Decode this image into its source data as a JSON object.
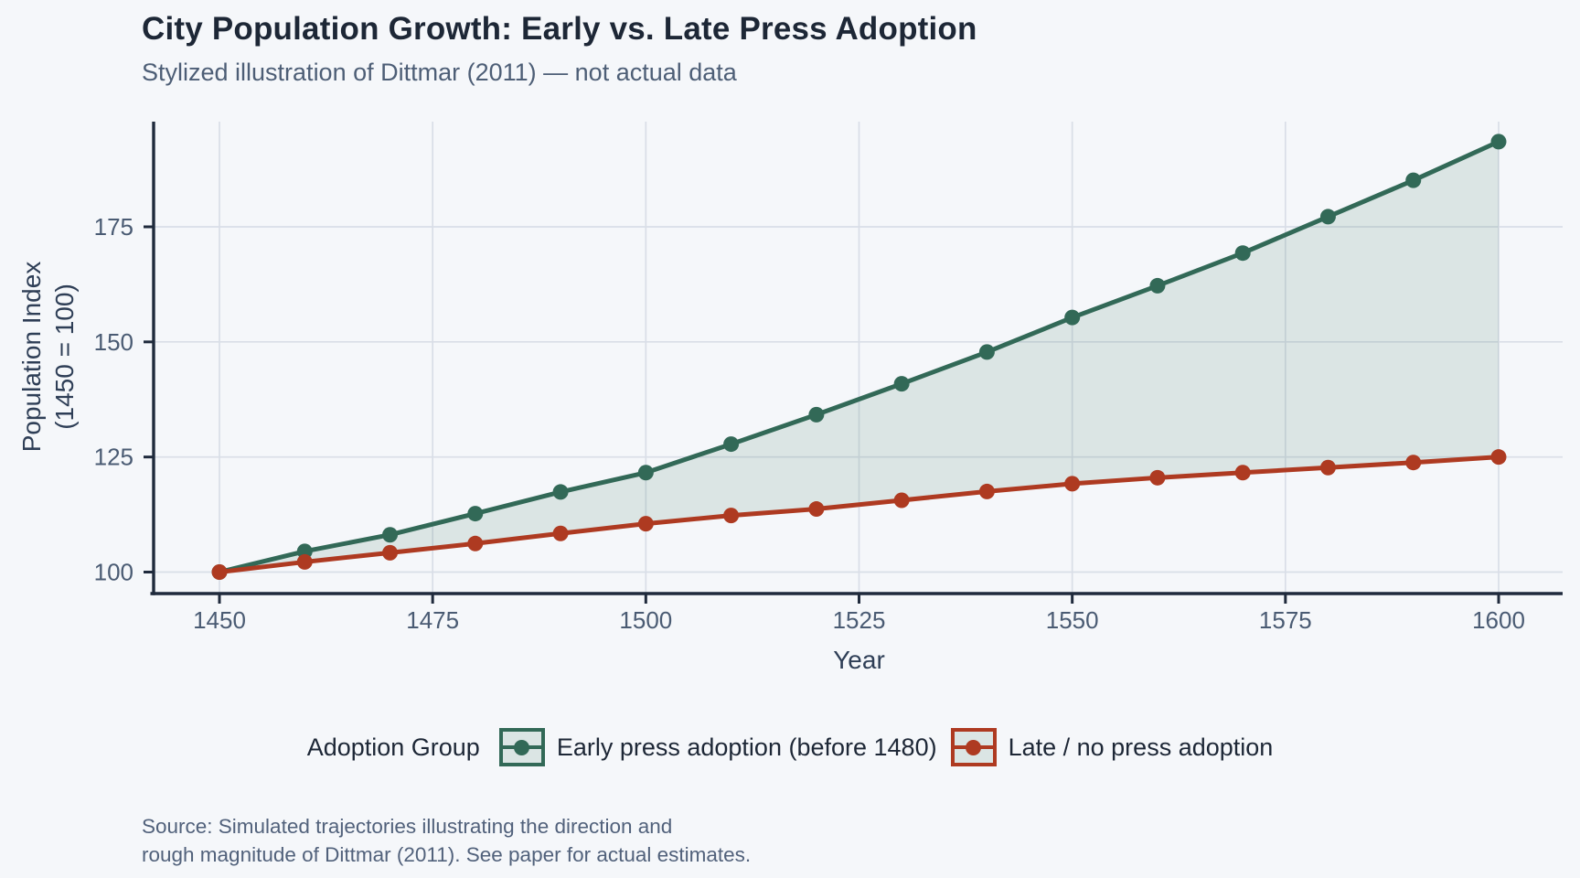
{
  "header": {
    "title": "City Population Growth: Early vs. Late Press Adoption",
    "subtitle": "Stylized illustration of Dittmar (2011) — not actual data"
  },
  "chart_data": {
    "type": "line",
    "title": "City Population Growth: Early vs. Late Press Adoption",
    "subtitle": "Stylized illustration of Dittmar (2011) — not actual data",
    "xlabel": "Year",
    "ylabel_lines": [
      "Population Index",
      "(1450 = 100)"
    ],
    "x": [
      1450,
      1460,
      1470,
      1480,
      1490,
      1500,
      1510,
      1520,
      1530,
      1540,
      1550,
      1560,
      1570,
      1580,
      1590,
      1600
    ],
    "series": [
      {
        "name": "Early press adoption (before 1480)",
        "color": "#326957",
        "values": [
          100,
          104.5,
          108.1,
          112.7,
          117.4,
          121.6,
          127.8,
          134.2,
          140.9,
          147.8,
          155.3,
          162.2,
          169.3,
          177.2,
          185.1,
          193.5
        ]
      },
      {
        "name": "Late / no press adoption",
        "color": "#AE3A21",
        "values": [
          100,
          102.2,
          104.2,
          106.2,
          108.4,
          110.5,
          112.3,
          113.7,
          115.6,
          117.5,
          119.2,
          120.5,
          121.6,
          122.7,
          123.8,
          125.0
        ]
      }
    ],
    "ribbon_fill": "rgba(50,105,87,0.13)",
    "x_ticks": [
      1450,
      1475,
      1500,
      1525,
      1550,
      1575,
      1600
    ],
    "y_ticks": [
      100,
      125,
      150,
      175
    ],
    "xlim": [
      1442.3,
      1607.5
    ],
    "ylim": [
      95.3,
      197.9
    ],
    "grid": true,
    "legend_position": "bottom",
    "legend_title": "Adoption Group"
  },
  "legend": {
    "title": "Adoption Group"
  },
  "source": {
    "line1": "Source: Simulated trajectories illustrating the direction and",
    "line2": "rough magnitude of Dittmar (2011). See paper for actual estimates."
  },
  "colors": {
    "background": "#F5F7FA",
    "grid": "#D9DEE7",
    "axis": "#1F2A3C",
    "tick_label": "#4A5B73",
    "axis_title": "#2E3E56",
    "title": "#1D2736",
    "subtitle": "#4D5E76",
    "source": "#51617B"
  }
}
